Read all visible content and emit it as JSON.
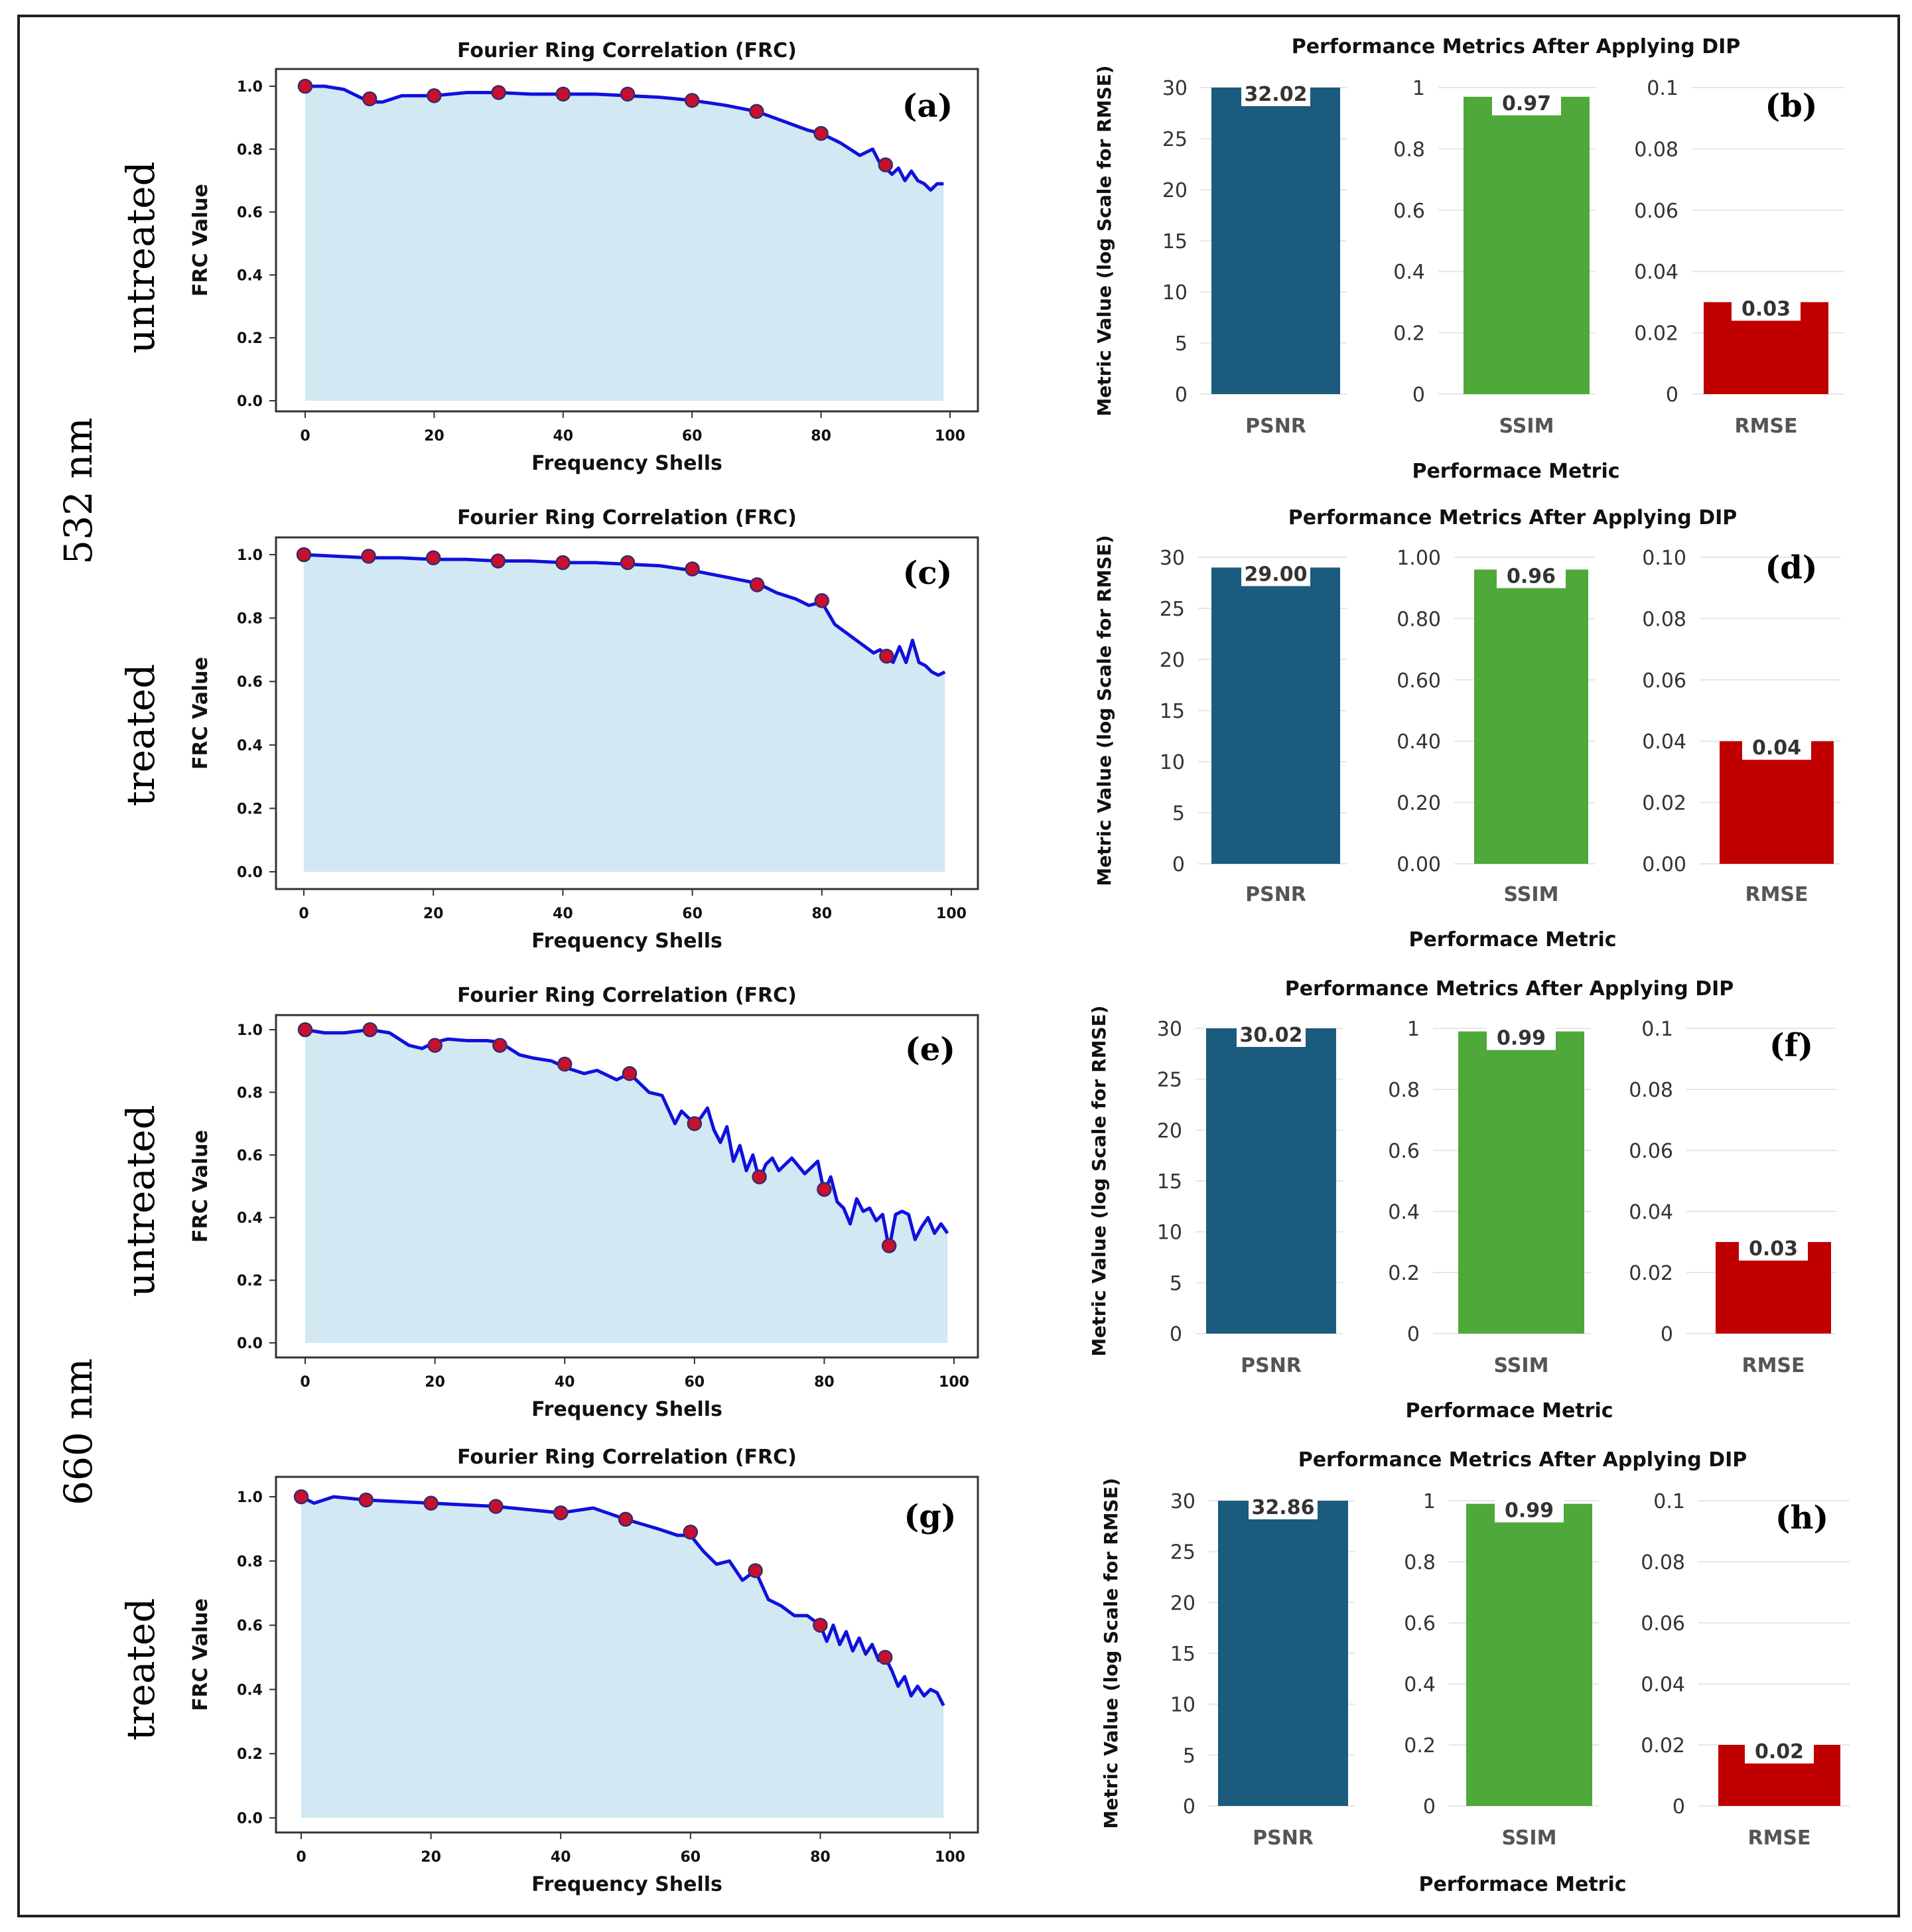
{
  "row_labels": [
    {
      "text": "untreated"
    },
    {
      "text": "treated"
    },
    {
      "text": "untreated"
    },
    {
      "text": "treated"
    }
  ],
  "group_labels": [
    {
      "text": "532 nm"
    },
    {
      "text": "660 nm"
    }
  ],
  "colors": {
    "frc_line": "#1010dd",
    "frc_fill": "#d2e8f2",
    "frc_marker_fill": "#c8102e",
    "frc_marker_edge": "#3a2a6a",
    "psnr": "#1a5b7e",
    "ssim": "#4ea83a",
    "rmse": "#c00000",
    "grid": "#e6e6e6"
  },
  "chart_data": [
    {
      "type": "line",
      "panel": "(a)",
      "title": "Fourier Ring Correlation (FRC)",
      "xlabel": "Frequency Shells",
      "ylabel": "FRC Value",
      "xlim": [
        0,
        100
      ],
      "ylim": [
        0,
        1
      ],
      "xticks": [
        "0",
        "20",
        "40",
        "60",
        "80",
        "100"
      ],
      "yticks": [
        "0.0",
        "0.2",
        "0.4",
        "0.6",
        "0.8",
        "1.0"
      ],
      "x": [
        0,
        3,
        6,
        8,
        10,
        12,
        15,
        20,
        25,
        30,
        35,
        40,
        45,
        50,
        55,
        60,
        65,
        70,
        74,
        78,
        80,
        83,
        86,
        88,
        89,
        90,
        91,
        92,
        93,
        94,
        95,
        96,
        97,
        98,
        99
      ],
      "y": [
        1.0,
        1.0,
        0.99,
        0.97,
        0.95,
        0.95,
        0.97,
        0.97,
        0.98,
        0.98,
        0.975,
        0.975,
        0.975,
        0.97,
        0.965,
        0.955,
        0.94,
        0.92,
        0.89,
        0.86,
        0.85,
        0.82,
        0.78,
        0.8,
        0.76,
        0.74,
        0.72,
        0.74,
        0.7,
        0.73,
        0.7,
        0.69,
        0.67,
        0.69,
        0.69
      ],
      "markers_x": [
        0,
        10,
        20,
        30,
        40,
        50,
        60,
        70,
        80,
        90
      ],
      "markers_y": [
        1.0,
        0.96,
        0.97,
        0.98,
        0.975,
        0.975,
        0.955,
        0.92,
        0.85,
        0.75
      ]
    },
    {
      "type": "bar",
      "panel": "(b)",
      "title": "Performance Metrics After Applying DIP",
      "xlabel": "Performace Metric",
      "ylabel": "Metric Value (log Scale for RMSE)",
      "categories": [
        "PSNR",
        "SSIM",
        "RMSE"
      ],
      "values": [
        32.02,
        0.97,
        0.03
      ],
      "labels": [
        "32.02",
        "0.97",
        "0.03"
      ],
      "ylims": [
        [
          0,
          30
        ],
        [
          0,
          1
        ],
        [
          0,
          0.1
        ]
      ],
      "yticks": [
        [
          "0",
          "5",
          "10",
          "15",
          "20",
          "25",
          "30"
        ],
        [
          "0",
          "0.2",
          "0.4",
          "0.6",
          "0.8",
          "1"
        ],
        [
          "0",
          "0.02",
          "0.04",
          "0.06",
          "0.08",
          "0.1"
        ]
      ]
    },
    {
      "type": "line",
      "panel": "(c)",
      "title": "Fourier Ring Correlation (FRC)",
      "xlabel": "Frequency Shells",
      "ylabel": "FRC Value",
      "xlim": [
        0,
        100
      ],
      "ylim": [
        0,
        1
      ],
      "xticks": [
        "0",
        "20",
        "40",
        "60",
        "80",
        "100"
      ],
      "yticks": [
        "0.0",
        "0.2",
        "0.4",
        "0.6",
        "0.8",
        "1.0"
      ],
      "x": [
        0,
        5,
        10,
        15,
        20,
        25,
        30,
        35,
        40,
        45,
        50,
        55,
        60,
        65,
        70,
        73,
        76,
        78,
        80,
        82,
        84,
        86,
        88,
        89,
        90,
        91,
        92,
        93,
        94,
        95,
        96,
        97,
        98,
        99
      ],
      "y": [
        1.0,
        0.995,
        0.99,
        0.99,
        0.985,
        0.985,
        0.98,
        0.98,
        0.975,
        0.975,
        0.97,
        0.965,
        0.95,
        0.93,
        0.91,
        0.88,
        0.86,
        0.84,
        0.85,
        0.78,
        0.75,
        0.72,
        0.69,
        0.7,
        0.68,
        0.66,
        0.71,
        0.66,
        0.73,
        0.66,
        0.65,
        0.63,
        0.62,
        0.63
      ],
      "markers_x": [
        0,
        10,
        20,
        30,
        40,
        50,
        60,
        70,
        80,
        90
      ],
      "markers_y": [
        1.0,
        0.995,
        0.99,
        0.98,
        0.975,
        0.975,
        0.955,
        0.905,
        0.855,
        0.68
      ]
    },
    {
      "type": "bar",
      "panel": "(d)",
      "title": "Performance Metrics After Applying DIP",
      "xlabel": "Performace Metric",
      "ylabel": "Metric Value (log Scale for RMSE)",
      "categories": [
        "PSNR",
        "SSIM",
        "RMSE"
      ],
      "values": [
        29.0,
        0.96,
        0.04
      ],
      "labels": [
        "29.00",
        "0.96",
        "0.04"
      ],
      "ylims": [
        [
          0,
          30
        ],
        [
          0,
          1
        ],
        [
          0,
          0.1
        ]
      ],
      "yticks": [
        [
          "0",
          "5",
          "10",
          "15",
          "20",
          "25",
          "30"
        ],
        [
          "0.00",
          "0.20",
          "0.40",
          "0.60",
          "0.80",
          "1.00"
        ],
        [
          "0.00",
          "0.02",
          "0.04",
          "0.06",
          "0.08",
          "0.10"
        ]
      ]
    },
    {
      "type": "line",
      "panel": "(e)",
      "title": "Fourier Ring Correlation (FRC)",
      "xlabel": "Frequency Shells",
      "ylabel": "FRC Value",
      "xlim": [
        0,
        100
      ],
      "ylim": [
        0,
        1
      ],
      "xticks": [
        "0",
        "20",
        "40",
        "60",
        "80",
        "100"
      ],
      "yticks": [
        "0.0",
        "0.2",
        "0.4",
        "0.6",
        "0.8",
        "1.0"
      ],
      "x": [
        0,
        3,
        6,
        10,
        13,
        16,
        18,
        20,
        22,
        25,
        28,
        30,
        33,
        35,
        38,
        40,
        43,
        45,
        48,
        50,
        53,
        55,
        57,
        58,
        60,
        61,
        62,
        63,
        64,
        65,
        66,
        67,
        68,
        69,
        70,
        71,
        72,
        73,
        75,
        77,
        79,
        80,
        81,
        82,
        83,
        84,
        85,
        86,
        87,
        88,
        89,
        90,
        91,
        92,
        93,
        94,
        95,
        96,
        97,
        98,
        99
      ],
      "y": [
        1.0,
        0.99,
        0.99,
        1.0,
        0.99,
        0.95,
        0.94,
        0.96,
        0.97,
        0.965,
        0.965,
        0.96,
        0.92,
        0.91,
        0.9,
        0.88,
        0.86,
        0.87,
        0.84,
        0.86,
        0.8,
        0.79,
        0.7,
        0.74,
        0.7,
        0.72,
        0.75,
        0.68,
        0.64,
        0.69,
        0.58,
        0.63,
        0.55,
        0.6,
        0.52,
        0.57,
        0.59,
        0.55,
        0.59,
        0.54,
        0.58,
        0.48,
        0.53,
        0.45,
        0.43,
        0.38,
        0.46,
        0.42,
        0.43,
        0.39,
        0.41,
        0.3,
        0.41,
        0.42,
        0.41,
        0.33,
        0.37,
        0.4,
        0.35,
        0.38,
        0.35
      ],
      "markers_x": [
        0,
        10,
        20,
        30,
        40,
        50,
        60,
        70,
        80,
        90
      ],
      "markers_y": [
        1.0,
        1.0,
        0.95,
        0.95,
        0.89,
        0.86,
        0.7,
        0.53,
        0.49,
        0.31
      ]
    },
    {
      "type": "bar",
      "panel": "(f)",
      "title": "Performance Metrics After Applying DIP",
      "xlabel": "Performace Metric",
      "ylabel": "Metric Value (log Scale for RMSE)",
      "categories": [
        "PSNR",
        "SSIM",
        "RMSE"
      ],
      "values": [
        30.02,
        0.99,
        0.03
      ],
      "labels": [
        "30.02",
        "0.99",
        "0.03"
      ],
      "ylims": [
        [
          0,
          30
        ],
        [
          0,
          1
        ],
        [
          0,
          0.1
        ]
      ],
      "yticks": [
        [
          "0",
          "5",
          "10",
          "15",
          "20",
          "25",
          "30"
        ],
        [
          "0",
          "0.2",
          "0.4",
          "0.6",
          "0.8",
          "1"
        ],
        [
          "0",
          "0.02",
          "0.04",
          "0.06",
          "0.08",
          "0.1"
        ]
      ]
    },
    {
      "type": "line",
      "panel": "(g)",
      "title": "Fourier Ring Correlation (FRC)",
      "xlabel": "Frequency Shells",
      "ylabel": "FRC Value",
      "xlim": [
        0,
        100
      ],
      "ylim": [
        0,
        1
      ],
      "xticks": [
        "0",
        "20",
        "40",
        "60",
        "80",
        "100"
      ],
      "yticks": [
        "0.0",
        "0.2",
        "0.4",
        "0.6",
        "0.8",
        "1.0"
      ],
      "x": [
        0,
        2,
        5,
        10,
        15,
        20,
        25,
        30,
        35,
        40,
        45,
        50,
        55,
        58,
        60,
        62,
        64,
        66,
        68,
        70,
        72,
        74,
        76,
        78,
        80,
        81,
        82,
        83,
        84,
        85,
        86,
        87,
        88,
        89,
        90,
        91,
        92,
        93,
        94,
        95,
        96,
        97,
        98,
        99
      ],
      "y": [
        1.0,
        0.98,
        1.0,
        0.99,
        0.985,
        0.98,
        0.975,
        0.97,
        0.96,
        0.95,
        0.965,
        0.93,
        0.9,
        0.88,
        0.88,
        0.83,
        0.79,
        0.8,
        0.74,
        0.77,
        0.68,
        0.66,
        0.63,
        0.63,
        0.6,
        0.55,
        0.6,
        0.54,
        0.58,
        0.52,
        0.56,
        0.51,
        0.54,
        0.49,
        0.5,
        0.46,
        0.41,
        0.44,
        0.38,
        0.41,
        0.38,
        0.4,
        0.39,
        0.35
      ],
      "markers_x": [
        0,
        10,
        20,
        30,
        40,
        50,
        60,
        70,
        80,
        90
      ],
      "markers_y": [
        1.0,
        0.99,
        0.98,
        0.97,
        0.95,
        0.93,
        0.89,
        0.77,
        0.6,
        0.5
      ]
    },
    {
      "type": "bar",
      "panel": "(h)",
      "title": "Performance Metrics After Applying DIP",
      "xlabel": "Performace Metric",
      "ylabel": "Metric Value (log Scale for RMSE)",
      "categories": [
        "PSNR",
        "SSIM",
        "RMSE"
      ],
      "values": [
        32.86,
        0.99,
        0.02
      ],
      "labels": [
        "32.86",
        "0.99",
        "0.02"
      ],
      "ylims": [
        [
          0,
          30
        ],
        [
          0,
          1
        ],
        [
          0,
          0.1
        ]
      ],
      "yticks": [
        [
          "0",
          "5",
          "10",
          "15",
          "20",
          "25",
          "30"
        ],
        [
          "0",
          "0.2",
          "0.4",
          "0.6",
          "0.8",
          "1"
        ],
        [
          "0",
          "0.02",
          "0.04",
          "0.06",
          "0.08",
          "0.1"
        ]
      ]
    }
  ]
}
